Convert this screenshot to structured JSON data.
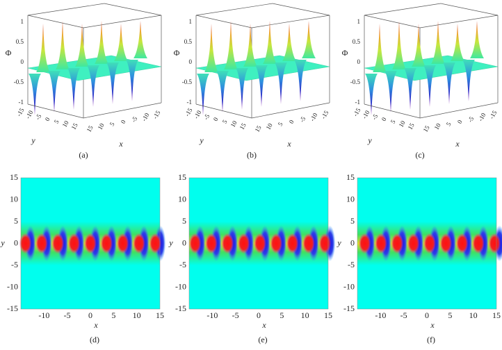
{
  "surfaces": [
    {
      "caption": "(a)",
      "z_label": "Φ",
      "x_label": "x",
      "y_label": "y",
      "z_ticks": [
        "1",
        "0.5",
        "0",
        "-0.5",
        "-1"
      ],
      "y_ticks": [
        "-15",
        "-10",
        "-5",
        "0",
        "5",
        "10",
        "15"
      ],
      "x_ticks": [
        "15",
        "10",
        "5",
        "0",
        "-5",
        "-10",
        "-15"
      ]
    },
    {
      "caption": "(b)",
      "z_label": "Φ",
      "x_label": "x",
      "y_label": "y",
      "z_ticks": [
        "1",
        "0.5",
        "0",
        "-0.5",
        "-1"
      ],
      "y_ticks": [
        "-15",
        "-10",
        "-5",
        "0",
        "5",
        "10",
        "15"
      ],
      "x_ticks": [
        "15",
        "10",
        "5",
        "0",
        "-5",
        "-10",
        "-15"
      ]
    },
    {
      "caption": "(c)",
      "z_label": "Φ",
      "x_label": "x",
      "y_label": "y",
      "z_ticks": [
        "1",
        "0.5",
        "0",
        "-0.5",
        "-1"
      ],
      "y_ticks": [
        "-15",
        "-10",
        "-5",
        "0",
        "5",
        "10",
        "15"
      ],
      "x_ticks": [
        "15",
        "10",
        "5",
        "0",
        "-5",
        "-10",
        "-15"
      ]
    }
  ],
  "densities": [
    {
      "caption": "(d)",
      "x_label": "x",
      "y_label": "y",
      "y_ticks": [
        "15",
        "10",
        "5",
        "0",
        "-5",
        "-10",
        "-15"
      ],
      "x_ticks": [
        "-10",
        "-5",
        "0",
        "5",
        "10",
        "15"
      ]
    },
    {
      "caption": "(e)",
      "x_label": "x",
      "y_label": "y",
      "y_ticks": [
        "15",
        "10",
        "5",
        "0",
        "-5",
        "-10",
        "-15"
      ],
      "x_ticks": [
        "-10",
        "-5",
        "0",
        "5",
        "10",
        "15"
      ]
    },
    {
      "caption": "(f)",
      "x_label": "x",
      "y_label": "y",
      "y_ticks": [
        "15",
        "10",
        "5",
        "0",
        "-5",
        "-10",
        "-15"
      ],
      "x_ticks": [
        "-10",
        "-5",
        "0",
        "5",
        "10",
        "15"
      ]
    }
  ]
}
